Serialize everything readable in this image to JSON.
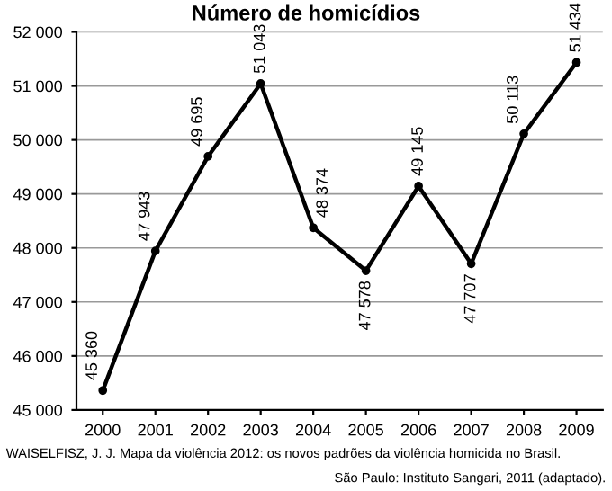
{
  "chart_data": {
    "type": "line",
    "title": "Número de homicídios",
    "categories": [
      "2000",
      "2001",
      "2002",
      "2003",
      "2004",
      "2005",
      "2006",
      "2007",
      "2008",
      "2009"
    ],
    "series": [
      {
        "color": "#000000",
        "values": [
          45360,
          47943,
          49695,
          51043,
          48374,
          47578,
          49145,
          47707,
          50113,
          51434
        ],
        "value_labels": [
          "45 360",
          "47 943",
          "49 695",
          "51 043",
          "48 374",
          "47 578",
          "49 145",
          "47 707",
          "50 113",
          "51 434"
        ]
      }
    ],
    "ylim": [
      45000,
      52000
    ],
    "yticks": [
      {
        "value": 45000,
        "label": "45 000"
      },
      {
        "value": 46000,
        "label": "46 000"
      },
      {
        "value": 47000,
        "label": "47 000"
      },
      {
        "value": 48000,
        "label": "48 000"
      },
      {
        "value": 49000,
        "label": "49 000"
      },
      {
        "value": 50000,
        "label": "50 000"
      },
      {
        "value": 51000,
        "label": "51 000"
      },
      {
        "value": 52000,
        "label": "52 000"
      }
    ],
    "grid": "y",
    "marker": "circle",
    "line_style": "solid",
    "annotations": [
      "WAISELFISZ, J. J. Mapa da violência 2012: os novos padrões da violência homicida no Brasil.",
      "São Paulo: Instituto Sangari, 2011 (adaptado)."
    ]
  }
}
